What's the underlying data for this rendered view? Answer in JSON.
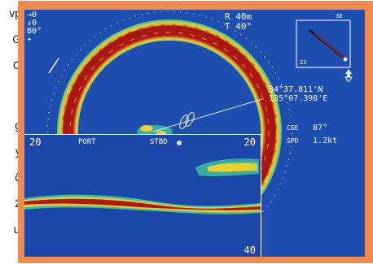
{
  "side_text": [
    "vp",
    "G",
    "C",
    "g",
    "y",
    "ộ",
    "2",
    "ư"
  ],
  "sonar": {
    "top_left_lines": [
      "→0",
      "↓0",
      "B0°",
      "✦"
    ],
    "range_line": "R 40m",
    "tilt_line": "T 40°",
    "compass": {
      "top_label": "30",
      "left_label": "23"
    },
    "latitude": "34°37.811'N",
    "longitude": "135°07.398'E",
    "course_label": "CSE",
    "course_value": "87°",
    "speed_label": "SPD",
    "speed_value": "1.2kt"
  },
  "sounder": {
    "depth_top_left": "20",
    "port_label": "PORT",
    "stbd_label": "STBD",
    "depth_top_right": "20",
    "depth_bottom_right": "40"
  },
  "colors": {
    "frame": "#f08a4e",
    "screen": "#1e4fb0",
    "echo_strong": "#b01818",
    "echo_mid": "#e8d030",
    "echo_weak": "#3cc0a0"
  }
}
